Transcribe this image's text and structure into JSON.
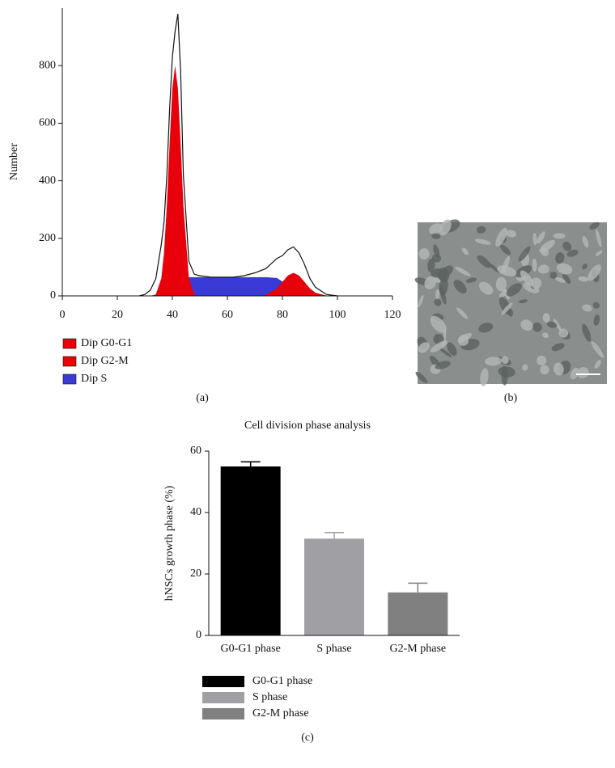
{
  "panel_labels": [
    "(a)",
    "(b)",
    "(c)"
  ],
  "chart_data": [
    {
      "type": "area",
      "ylabel": "Number",
      "x": [
        28,
        30,
        32,
        34,
        36,
        37,
        38,
        39,
        40,
        41,
        42,
        43,
        44,
        46,
        48,
        50,
        54,
        58,
        62,
        66,
        70,
        74,
        78,
        80,
        82,
        84,
        86,
        88,
        90,
        92,
        96,
        100
      ],
      "series": [
        {
          "name": "Dip G0-G1",
          "color": "#e8000b",
          "fill": true,
          "values": [
            0,
            0,
            0,
            5,
            61,
            153,
            316,
            529,
            722,
            800,
            722,
            529,
            316,
            61,
            5,
            0,
            0,
            0,
            0,
            0,
            0,
            0,
            0,
            0,
            0,
            0,
            0,
            0,
            0,
            0,
            0,
            0
          ]
        },
        {
          "name": "Dip G2-M",
          "color": "#e8000b",
          "fill": true,
          "values": [
            0,
            0,
            0,
            0,
            0,
            0,
            0,
            0,
            0,
            0,
            0,
            0,
            0,
            0,
            0,
            0,
            0,
            0,
            0,
            0,
            0,
            4,
            26,
            49,
            71,
            80,
            71,
            49,
            26,
            11,
            1,
            0
          ]
        },
        {
          "name": "Dip S",
          "color": "#3a3ad6",
          "fill": true,
          "values": [
            0,
            0,
            0,
            0,
            0,
            0,
            0,
            5,
            15,
            30,
            45,
            55,
            60,
            65,
            65,
            65,
            65,
            65,
            65,
            65,
            65,
            65,
            62,
            50,
            30,
            15,
            5,
            0,
            0,
            0,
            0,
            0
          ]
        },
        {
          "color": "#111111",
          "fill": false,
          "values": [
            0,
            5,
            20,
            60,
            180,
            260,
            420,
            650,
            830,
            920,
            980,
            780,
            420,
            120,
            75,
            70,
            65,
            65,
            65,
            70,
            80,
            95,
            130,
            140,
            160,
            170,
            150,
            110,
            60,
            30,
            5,
            0
          ]
        }
      ],
      "xlim": [
        0,
        120
      ],
      "xticks": [
        0,
        20,
        40,
        60,
        80,
        100,
        120
      ],
      "ylim": [
        0,
        1000
      ],
      "yticks": [
        0,
        200,
        400,
        600,
        800
      ]
    },
    {
      "type": "bar",
      "title": "Cell division phase analysis",
      "ylabel": "hNSCs growth phase (%)",
      "categories": [
        "G0-G1 phase",
        "S phase",
        "G2-M phase"
      ],
      "values": [
        55,
        31.5,
        14
      ],
      "errors": [
        1.5,
        2,
        3
      ],
      "colors": [
        "#000000",
        "#a0a0a4",
        "#808080"
      ],
      "ylim": [
        0,
        60
      ],
      "yticks": [
        0,
        20,
        40,
        60
      ]
    }
  ]
}
